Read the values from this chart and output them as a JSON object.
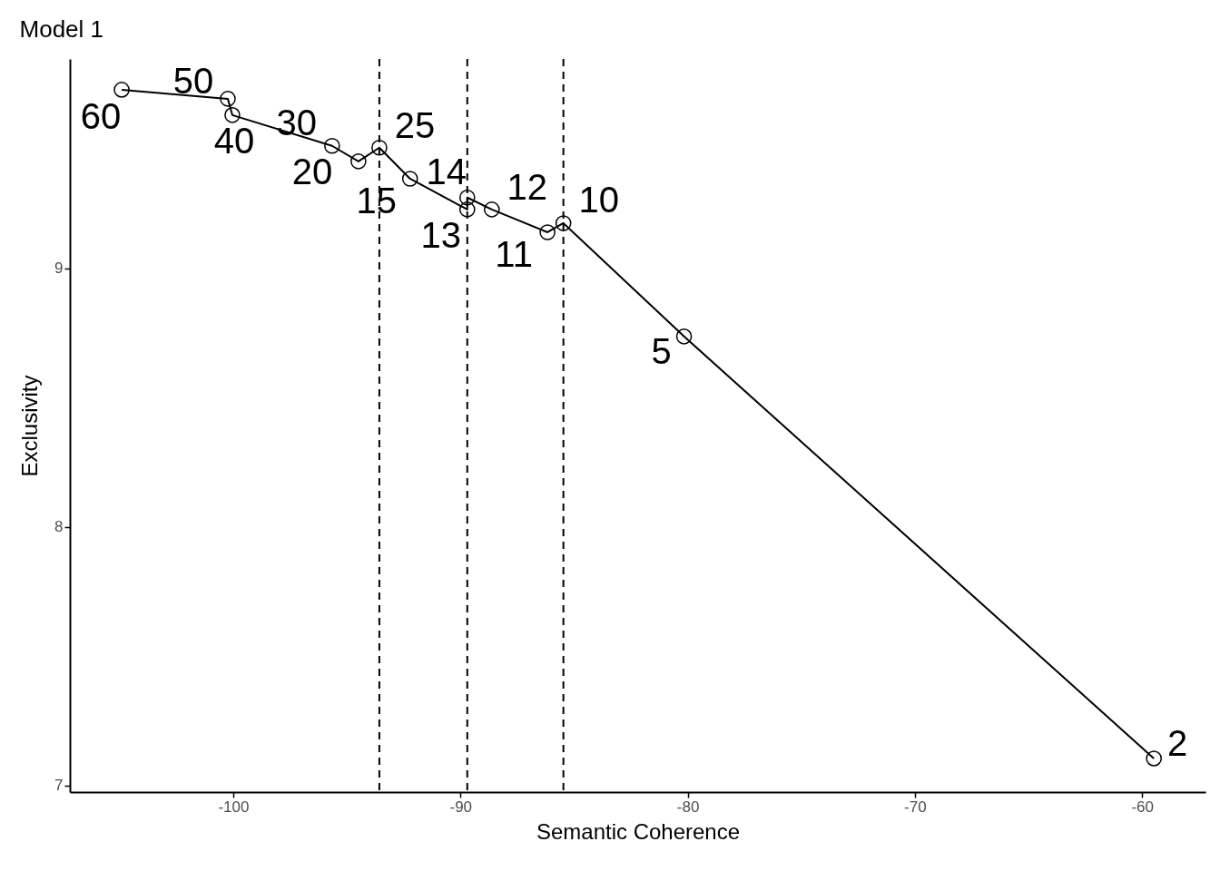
{
  "chart_data": {
    "type": "line",
    "title": "Model 1",
    "xlabel": "Semantic Coherence",
    "ylabel": "Exclusivity",
    "x": [
      -104.91,
      -100.24,
      -100.04,
      -95.65,
      -94.49,
      -93.57,
      -92.22,
      -89.7,
      -89.7,
      -88.62,
      -86.17,
      -85.47,
      -80.16,
      -59.48
    ],
    "series": [
      {
        "color": "#000000",
        "values": [
          9.691,
          9.656,
          9.593,
          9.474,
          9.414,
          9.467,
          9.347,
          9.228,
          9.274,
          9.228,
          9.14,
          9.175,
          8.737,
          7.105
        ]
      }
    ],
    "xlim": [
      -107.19,
      -57.21
    ],
    "xticks": [
      -100,
      -90,
      -80,
      -70,
      -60
    ],
    "ylim": [
      6.975,
      9.81
    ],
    "yticks": [
      7,
      8,
      9
    ],
    "marker": "circle",
    "line_style": "solid",
    "grid": false,
    "ref_lines": [
      {
        "axis": "x",
        "value": -93.57,
        "color": "#000000",
        "line_style": "dashed"
      },
      {
        "axis": "x",
        "value": -89.7,
        "color": "#000000",
        "line_style": "dashed"
      },
      {
        "axis": "x",
        "value": -85.47,
        "color": "#000000",
        "line_style": "dashed"
      }
    ],
    "annotations": [
      {
        "text": "60",
        "x": -104.91,
        "y": 9.691
      },
      {
        "text": "50",
        "x": -100.24,
        "y": 9.656
      },
      {
        "text": "40",
        "x": -100.04,
        "y": 9.593
      },
      {
        "text": "30",
        "x": -95.65,
        "y": 9.474
      },
      {
        "text": "20",
        "x": -94.49,
        "y": 9.414
      },
      {
        "text": "25",
        "x": -93.57,
        "y": 9.467
      },
      {
        "text": "15",
        "x": -92.22,
        "y": 9.347
      },
      {
        "text": "13",
        "x": -89.7,
        "y": 9.228
      },
      {
        "text": "14",
        "x": -89.7,
        "y": 9.274
      },
      {
        "text": "12",
        "x": -88.62,
        "y": 9.228
      },
      {
        "text": "11",
        "x": -86.17,
        "y": 9.14
      },
      {
        "text": "10",
        "x": -85.47,
        "y": 9.175
      },
      {
        "text": "5",
        "x": -80.16,
        "y": 8.737
      },
      {
        "text": "2",
        "x": -59.48,
        "y": 7.105
      }
    ]
  }
}
